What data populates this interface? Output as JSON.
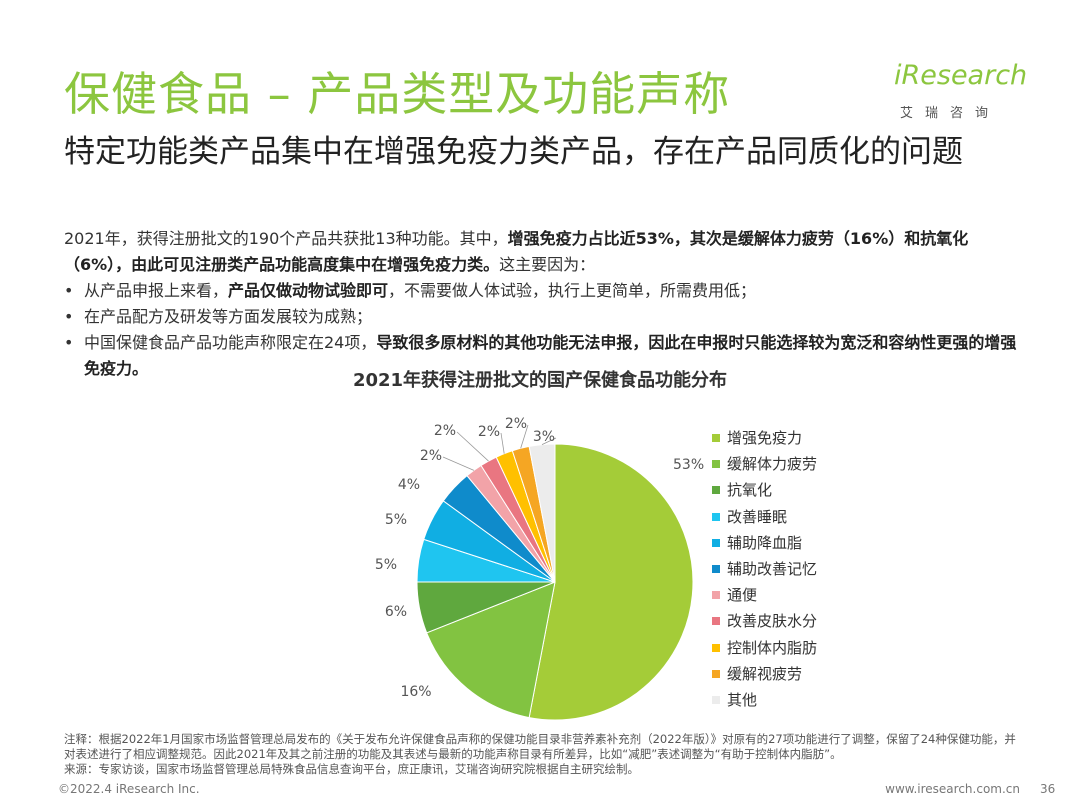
{
  "header": {
    "title": "保健食品 – 产品类型及功能声称",
    "subtitle": "特定功能类产品集中在增强免疫力类产品，存在产品同质化的问题"
  },
  "logo": {
    "brand": "iResearch",
    "brand_cn": "艾瑞咨询"
  },
  "body": {
    "intro_1": "2021年，获得注册批文的190个产品共获批13种功能。其中，",
    "intro_bold_1": "增强免疫力占比近53%，其次是缓解体力疲劳（16%）和抗氧化（6%），由此可见注册类产品功能高度集中在增强免疫力类。",
    "intro_2": "这主要因为：",
    "bullet_1_a": "从产品申报上来看，",
    "bullet_1_bold": "产品仅做动物试验即可",
    "bullet_1_b": "，不需要做人体试验，执行上更简单，所需费用低；",
    "bullet_2": "在产品配方及研发等方面发展较为成熟；",
    "bullet_3_a": "中国保健食品产品功能声称限定在24项，",
    "bullet_3_bold": "导致很多原材料的其他功能无法申报，因此在申报时只能选择较为宽泛和容纳性更强的增强免疫力。"
  },
  "chart_data": {
    "type": "pie",
    "title": "2021年获得注册批文的国产保健食品功能分布",
    "legend_position": "right",
    "slices": [
      {
        "name": "增强免疫力",
        "value": 53,
        "label": "53%",
        "color": "#a4cc38"
      },
      {
        "name": "缓解体力疲劳",
        "value": 16,
        "label": "16%",
        "color": "#82c341"
      },
      {
        "name": "抗氧化",
        "value": 6,
        "label": "6%",
        "color": "#5fa83e"
      },
      {
        "name": "改善睡眠",
        "value": 5,
        "label": "5%",
        "color": "#1fc5f0"
      },
      {
        "name": "辅助降血脂",
        "value": 5,
        "label": "5%",
        "color": "#10aee3"
      },
      {
        "name": "辅助改善记忆",
        "value": 4,
        "label": "4%",
        "color": "#0f8bcb"
      },
      {
        "name": "通便",
        "value": 2,
        "label": "2%",
        "color": "#f2a3a8"
      },
      {
        "name": "改善皮肤水分",
        "value": 2,
        "label": "2%",
        "color": "#e97681"
      },
      {
        "name": "控制体内脂肪",
        "value": 2,
        "label": "2%",
        "color": "#ffc000"
      },
      {
        "name": "缓解视疲劳",
        "value": 2,
        "label": "2%",
        "color": "#f5a623"
      },
      {
        "name": "其他",
        "value": 3,
        "label": "3%",
        "color": "#ececec"
      }
    ]
  },
  "footnote": {
    "note": "注释：根据2022年1月国家市场监督管理总局发布的《关于发布允许保健食品声称的保健功能目录非营养素补充剂（2022年版）》对原有的27项功能进行了调整，保留了24种保健功能，并对表述进行了相应调整规范。因此2021年及其之前注册的功能及其表述与最新的功能声称目录有所差异，比如“减肥”表述调整为“有助于控制体内脂肪”。",
    "source": "来源：专家访谈，国家市场监督管理总局特殊食品信息查询平台，庶正康讯，艾瑞咨询研究院根据自主研究绘制。"
  },
  "footer": {
    "copyright": "©2022.4 iResearch Inc.",
    "website": "www.iresearch.com.cn",
    "page": "36"
  }
}
